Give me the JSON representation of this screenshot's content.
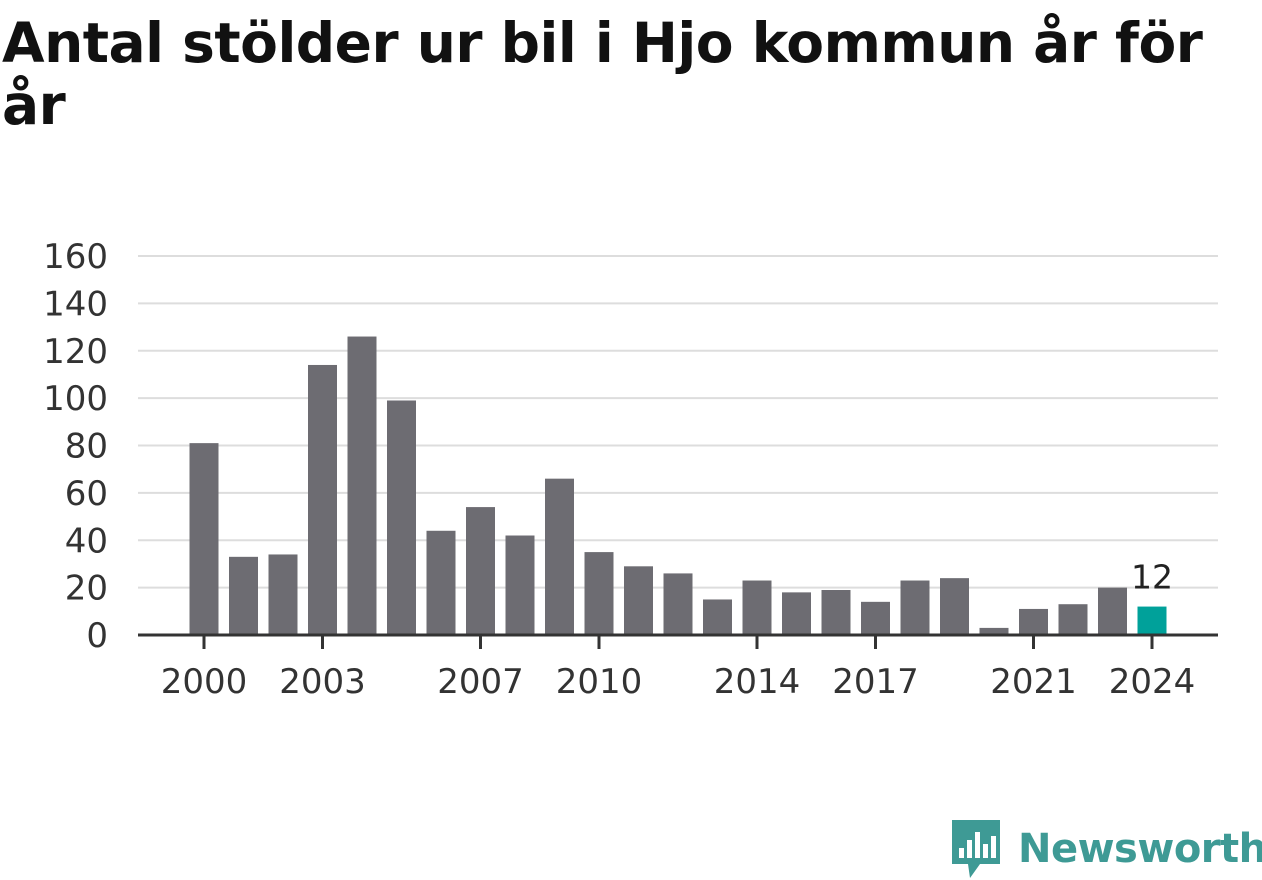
{
  "title": "Antal stölder ur bil i Hjo kommun år för år",
  "brand": {
    "name": "Newsworthy",
    "icon": "newsworthy-logo-icon",
    "color": "#3e9a95"
  },
  "colors": {
    "bar": "#6d6c72",
    "highlight": "#00a19a",
    "grid": "#dddddd",
    "axis": "#333333"
  },
  "chart_data": {
    "type": "bar",
    "categories": [
      "2000",
      "2001",
      "2002",
      "2003",
      "2004",
      "2005",
      "2006",
      "2007",
      "2008",
      "2009",
      "2010",
      "2011",
      "2012",
      "2013",
      "2014",
      "2015",
      "2016",
      "2017",
      "2018",
      "2019",
      "2020",
      "2021",
      "2022",
      "2023",
      "2024"
    ],
    "values": [
      81,
      33,
      34,
      114,
      126,
      99,
      44,
      54,
      42,
      66,
      35,
      29,
      26,
      15,
      23,
      18,
      19,
      14,
      23,
      24,
      3,
      11,
      13,
      20,
      12
    ],
    "x_tick_labels": [
      "2000",
      "2003",
      "2007",
      "2010",
      "2014",
      "2017",
      "2021",
      "2024"
    ],
    "y_ticks": [
      0,
      20,
      40,
      60,
      80,
      100,
      120,
      140,
      160
    ],
    "ylim": [
      0,
      160
    ],
    "grid": true,
    "highlight": {
      "category": "2024",
      "label": "12"
    },
    "xlabel": "",
    "ylabel": ""
  }
}
